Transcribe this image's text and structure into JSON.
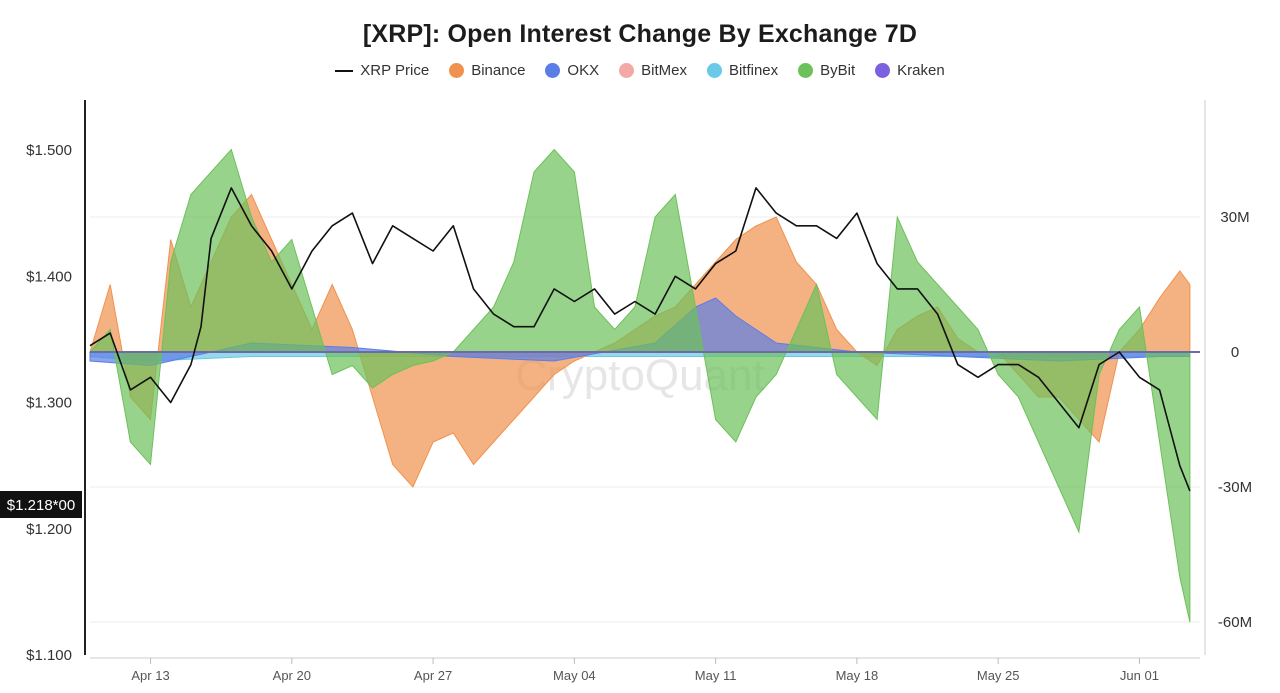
{
  "title": "[XRP]: Open Interest Change By Exchange 7D",
  "legend": [
    {
      "label": "XRP Price",
      "color": "#111111",
      "kind": "line"
    },
    {
      "label": "Binance",
      "color": "#f0924d",
      "kind": "dot"
    },
    {
      "label": "OKX",
      "color": "#5b7ee6",
      "kind": "dot"
    },
    {
      "label": "BitMex",
      "color": "#f3a9a6",
      "kind": "dot"
    },
    {
      "label": "Bitfinex",
      "color": "#6ac9e6",
      "kind": "dot"
    },
    {
      "label": "ByBit",
      "color": "#6cc15a",
      "kind": "dot"
    },
    {
      "label": "Kraken",
      "color": "#7b61e0",
      "kind": "dot"
    }
  ],
  "watermark": "CryptoQuant",
  "price_badge": "$1.218*00",
  "chart_data": {
    "type": "area",
    "x_tick_labels": [
      "Apr 13",
      "Apr 20",
      "Apr 27",
      "May 04",
      "May 11",
      "May 18",
      "May 25",
      "Jun 01"
    ],
    "x_tick_days": [
      5,
      12,
      19,
      26,
      33,
      40,
      47,
      54
    ],
    "x_range": [
      2,
      57
    ],
    "y_left": {
      "label": "",
      "range": [
        1.1,
        1.5
      ],
      "ticks": [
        1.1,
        1.2,
        1.3,
        1.4,
        1.5
      ],
      "tick_labels": [
        "$1.100",
        "$1.200",
        "$1.300",
        "$1.400",
        "$1.500"
      ]
    },
    "y_right": {
      "label": "",
      "range": [
        -60,
        30
      ],
      "ticks": [
        -60,
        -30,
        0,
        30
      ],
      "tick_labels": [
        "-60M",
        "-30M",
        "0",
        "30M"
      ]
    },
    "grid": true,
    "legend_position": "top-center",
    "series": [
      {
        "name": "XRP Price",
        "axis": "left",
        "type": "line",
        "color": "#111111",
        "x": [
          2,
          3,
          4,
          5,
          6,
          7,
          7.5,
          8,
          9,
          10,
          11,
          12,
          13,
          14,
          15,
          16,
          17,
          18,
          19,
          20,
          21,
          22,
          23,
          24,
          25,
          26,
          27,
          28,
          29,
          30,
          31,
          32,
          33,
          34,
          35,
          36,
          37,
          38,
          39,
          40,
          41,
          42,
          43,
          44,
          45,
          46,
          47,
          48,
          49,
          50,
          51,
          52,
          53,
          54,
          55,
          56,
          56.5
        ],
        "y": [
          1.345,
          1.355,
          1.31,
          1.32,
          1.3,
          1.33,
          1.36,
          1.43,
          1.47,
          1.44,
          1.42,
          1.39,
          1.42,
          1.44,
          1.45,
          1.41,
          1.44,
          1.43,
          1.42,
          1.44,
          1.39,
          1.37,
          1.36,
          1.36,
          1.39,
          1.38,
          1.39,
          1.37,
          1.38,
          1.37,
          1.4,
          1.39,
          1.41,
          1.42,
          1.47,
          1.45,
          1.44,
          1.44,
          1.43,
          1.45,
          1.41,
          1.39,
          1.39,
          1.37,
          1.33,
          1.32,
          1.33,
          1.33,
          1.32,
          1.3,
          1.28,
          1.33,
          1.34,
          1.32,
          1.31,
          1.25,
          1.23
        ]
      },
      {
        "name": "Binance",
        "axis": "right",
        "type": "area",
        "color": "#f0924d",
        "x": [
          2,
          3,
          4,
          5,
          6,
          7,
          8,
          9,
          10,
          11,
          12,
          13,
          14,
          15,
          16,
          17,
          18,
          19,
          20,
          21,
          22,
          23,
          24,
          25,
          26,
          27,
          28,
          29,
          30,
          31,
          32,
          33,
          34,
          35,
          36,
          37,
          38,
          39,
          40,
          41,
          42,
          43,
          44,
          45,
          46,
          47,
          48,
          49,
          50,
          51,
          52,
          53,
          54,
          55,
          56,
          56.5
        ],
        "y": [
          0,
          15,
          -10,
          -15,
          25,
          10,
          20,
          30,
          35,
          25,
          15,
          5,
          15,
          5,
          -10,
          -25,
          -30,
          -20,
          -18,
          -25,
          -20,
          -15,
          -10,
          -5,
          -2,
          0,
          2,
          5,
          8,
          10,
          15,
          20,
          25,
          28,
          30,
          20,
          15,
          5,
          0,
          -3,
          5,
          8,
          10,
          3,
          0,
          0,
          -5,
          -10,
          -10,
          -15,
          -20,
          0,
          5,
          12,
          18,
          15
        ]
      },
      {
        "name": "OKX",
        "axis": "right",
        "type": "area",
        "color": "#5b7ee6",
        "x": [
          2,
          5,
          10,
          15,
          20,
          25,
          30,
          32,
          33,
          34,
          35,
          36,
          38,
          40,
          45,
          50,
          55,
          56.5
        ],
        "y": [
          -2,
          -3,
          2,
          1,
          -1,
          -2,
          2,
          10,
          12,
          8,
          5,
          2,
          1,
          0,
          -1,
          -2,
          -1,
          -1
        ]
      },
      {
        "name": "BitMex",
        "axis": "right",
        "type": "area",
        "color": "#f3a9a6",
        "x": [
          2,
          56.5
        ],
        "y": [
          0,
          0
        ]
      },
      {
        "name": "Bitfinex",
        "axis": "right",
        "type": "area",
        "color": "#6ac9e6",
        "x": [
          2,
          5,
          10,
          15,
          20,
          25,
          30,
          35,
          40,
          45,
          50,
          56.5
        ],
        "y": [
          -1,
          -2,
          -1,
          -1,
          -1,
          -1,
          -1,
          -1,
          -1,
          -1,
          -1,
          -1
        ]
      },
      {
        "name": "ByBit",
        "axis": "right",
        "type": "area",
        "color": "#6cc15a",
        "x": [
          2,
          3,
          4,
          5,
          6,
          7,
          8,
          9,
          10,
          11,
          12,
          13,
          14,
          15,
          16,
          17,
          18,
          19,
          20,
          21,
          22,
          23,
          24,
          25,
          26,
          27,
          28,
          29,
          30,
          31,
          32,
          33,
          34,
          35,
          36,
          37,
          38,
          39,
          40,
          41,
          42,
          43,
          44,
          45,
          46,
          47,
          48,
          49,
          50,
          51,
          52,
          53,
          54,
          55,
          56,
          56.5
        ],
        "y": [
          0,
          5,
          -20,
          -25,
          20,
          35,
          40,
          45,
          30,
          20,
          25,
          10,
          -5,
          -3,
          -8,
          -5,
          -3,
          -2,
          0,
          5,
          10,
          20,
          40,
          45,
          40,
          10,
          5,
          10,
          30,
          35,
          10,
          -15,
          -20,
          -10,
          -5,
          5,
          15,
          -5,
          -10,
          -15,
          30,
          20,
          15,
          10,
          5,
          -5,
          -10,
          -20,
          -30,
          -40,
          -5,
          5,
          10,
          -20,
          -50,
          -60
        ]
      },
      {
        "name": "Kraken",
        "axis": "right",
        "type": "area",
        "color": "#7b61e0",
        "x": [
          2,
          56.5
        ],
        "y": [
          0,
          0
        ]
      }
    ]
  }
}
